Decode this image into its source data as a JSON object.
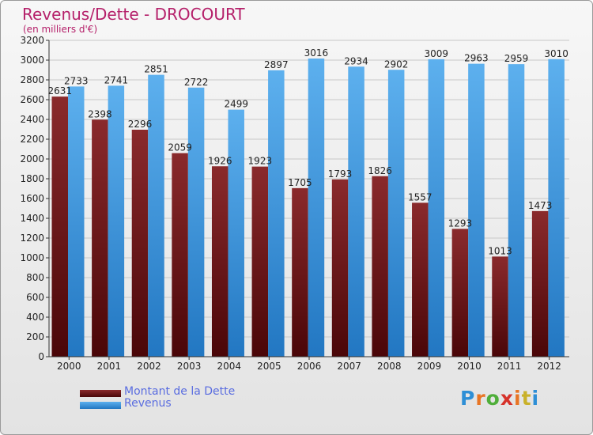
{
  "title": "Revenus/Dette - DROCOURT",
  "subtitle": "(en milliers d'€)",
  "logo": "Proxiti",
  "colors": {
    "dette": "#6b1416",
    "revenus": "#2f8fd6",
    "title": "#b5206a",
    "legend_text": "#5a6de0"
  },
  "chart_data": {
    "type": "bar",
    "title": "Revenus/Dette - DROCOURT",
    "ylabel": "(en milliers d'€)",
    "xlabel": "",
    "ylim": [
      0,
      3200
    ],
    "ytick_step": 200,
    "grid": true,
    "legend": "bottom-left",
    "categories": [
      "2000",
      "2001",
      "2002",
      "2003",
      "2004",
      "2005",
      "2006",
      "2007",
      "2008",
      "2009",
      "2010",
      "2011",
      "2012"
    ],
    "series": [
      {
        "name": "Montant de la Dette",
        "values": [
          2631,
          2398,
          2296,
          2059,
          1926,
          1923,
          1705,
          1793,
          1826,
          1557,
          1293,
          1013,
          1473
        ]
      },
      {
        "name": "Revenus",
        "values": [
          2733,
          2741,
          2851,
          2722,
          2499,
          2897,
          3016,
          2934,
          2902,
          3009,
          2963,
          2959,
          3010
        ]
      }
    ]
  }
}
